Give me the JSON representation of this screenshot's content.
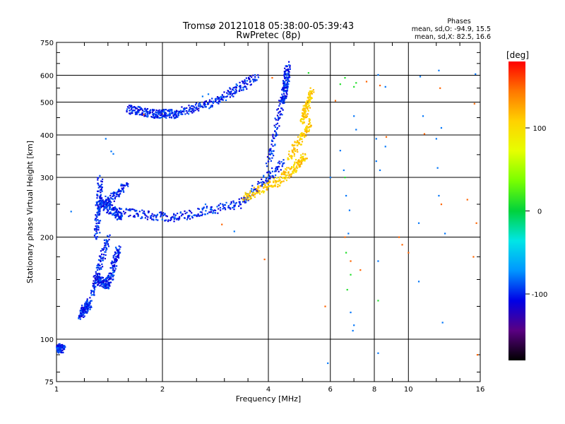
{
  "chart_data": {
    "type": "scatter",
    "title": "Tromsø 20121018 05:38:00-05:39:43",
    "subtitle": "RwPretec (8p)",
    "xlabel": "Frequency [MHz]",
    "ylabel": "Stationary phase Virtual Height [km]",
    "x_scale": "log",
    "y_scale": "log",
    "xlim": [
      1,
      16
    ],
    "ylim": [
      75,
      750
    ],
    "x_ticks": [
      1,
      2,
      4,
      6,
      8,
      10,
      16
    ],
    "y_ticks": [
      75,
      100,
      200,
      300,
      400,
      500,
      600,
      750
    ],
    "grid": true,
    "phases_box": {
      "title": "Phases",
      "line_o": "mean, sd,O:  -94.9, 15.5",
      "line_x": "mean, sd,X:  82.5, 16.6"
    },
    "colorbar": {
      "label": "[deg]",
      "range": [
        -180,
        180
      ],
      "ticks": [
        100,
        0,
        -100
      ],
      "colors": [
        "#000000",
        "#5a0082",
        "#0000e6",
        "#0096ff",
        "#00e6e6",
        "#00d23c",
        "#78ff00",
        "#e6ff00",
        "#ffd200",
        "#ff7800",
        "#ff0000"
      ]
    },
    "series": [
      {
        "phase_deg": -100,
        "segments": [
          {
            "x": [
              1.0,
              1.04
            ],
            "y": [
              94,
              94
            ]
          },
          {
            "x": [
              1.17,
              1.24
            ],
            "y": [
              118,
              128
            ]
          },
          {
            "x": [
              1.26,
              1.4
            ],
            "y": [
              135,
              200
            ]
          },
          {
            "x": [
              1.3,
              1.4
            ],
            "y": [
              150,
              145
            ]
          },
          {
            "x": [
              1.3,
              1.33
            ],
            "y": [
              200,
              295
            ]
          },
          {
            "x": [
              1.33,
              1.58
            ],
            "y": [
              245,
              285
            ]
          },
          {
            "x": [
              1.33,
              1.52
            ],
            "y": [
              255,
              230
            ]
          },
          {
            "x": [
              1.4,
              1.5
            ],
            "y": [
              145,
              185
            ]
          },
          {
            "x": [
              1.45,
              2.15
            ],
            "y": [
              238,
              228
            ]
          },
          {
            "x": [
              2.15,
              3.3
            ],
            "y": [
              228,
              250
            ]
          },
          {
            "x": [
              3.3,
              4.4
            ],
            "y": [
              250,
              330
            ]
          },
          {
            "x": [
              4.0,
              4.55
            ],
            "y": [
              330,
              610
            ]
          },
          {
            "x": [
              4.4,
              4.55
            ],
            "y": [
              500,
              640
            ]
          },
          {
            "x": [
              1.6,
              1.9
            ],
            "y": [
              478,
              462
            ]
          },
          {
            "x": [
              1.9,
              2.2
            ],
            "y": [
              462,
              462
            ]
          },
          {
            "x": [
              2.2,
              2.9
            ],
            "y": [
              465,
              505
            ]
          },
          {
            "x": [
              2.9,
              3.7
            ],
            "y": [
              510,
              590
            ]
          }
        ]
      },
      {
        "phase_deg": 110,
        "segments": [
          {
            "x": [
              3.4,
              4.4
            ],
            "y": [
              262,
              295
            ]
          },
          {
            "x": [
              4.4,
              5.1
            ],
            "y": [
              300,
              345
            ]
          },
          {
            "x": [
              4.6,
              5.3
            ],
            "y": [
              345,
              440
            ]
          },
          {
            "x": [
              5.0,
              5.3
            ],
            "y": [
              440,
              540
            ]
          }
        ]
      },
      {
        "phase_deg": -80,
        "points": [
          [
            1.1,
            238
          ],
          [
            1.38,
            390
          ],
          [
            1.43,
            358
          ],
          [
            1.45,
            352
          ],
          [
            2.6,
            520
          ],
          [
            2.7,
            528
          ],
          [
            6.0,
            300
          ],
          [
            6.4,
            360
          ],
          [
            6.55,
            315
          ],
          [
            6.65,
            265
          ],
          [
            6.8,
            240
          ],
          [
            6.75,
            205
          ],
          [
            7.0,
            110
          ],
          [
            6.85,
            120
          ],
          [
            6.95,
            106
          ],
          [
            5.9,
            85
          ],
          [
            8.2,
            91
          ],
          [
            8.2,
            170
          ],
          [
            8.1,
            390
          ],
          [
            8.1,
            335
          ],
          [
            8.3,
            315
          ],
          [
            8.6,
            370
          ],
          [
            8.2,
            602
          ],
          [
            8.6,
            555
          ],
          [
            10.8,
            595
          ],
          [
            10.7,
            220
          ],
          [
            10.7,
            148
          ],
          [
            12.0,
            390
          ],
          [
            12.1,
            320
          ],
          [
            12.2,
            265
          ],
          [
            12.4,
            420
          ],
          [
            12.7,
            205
          ],
          [
            15.5,
            605
          ],
          [
            7.0,
            455
          ],
          [
            7.1,
            415
          ],
          [
            11.0,
            455
          ],
          [
            12.2,
            620
          ],
          [
            12.5,
            112
          ],
          [
            3.2,
            208
          ],
          [
            2.65,
            250
          ],
          [
            2.75,
            243
          ]
        ]
      },
      {
        "phase_deg": 10,
        "points": [
          [
            6.4,
            565
          ],
          [
            6.6,
            590
          ],
          [
            7.0,
            555
          ],
          [
            7.1,
            570
          ],
          [
            5.2,
            610
          ],
          [
            6.6,
            300
          ],
          [
            6.65,
            180
          ],
          [
            6.7,
            140
          ],
          [
            6.85,
            155
          ],
          [
            8.2,
            130
          ]
        ]
      },
      {
        "phase_deg": 150,
        "points": [
          [
            1.77,
            460
          ],
          [
            3.9,
            172
          ],
          [
            5.8,
            125
          ],
          [
            6.6,
            200
          ],
          [
            6.85,
            170
          ],
          [
            7.3,
            160
          ],
          [
            8.3,
            560
          ],
          [
            8.65,
            395
          ],
          [
            9.4,
            200
          ],
          [
            9.6,
            190
          ],
          [
            10.0,
            180
          ],
          [
            11.1,
            403
          ],
          [
            12.3,
            550
          ],
          [
            12.4,
            250
          ],
          [
            14.7,
            258
          ],
          [
            15.6,
            220
          ],
          [
            15.4,
            495
          ],
          [
            15.3,
            175
          ],
          [
            15.7,
            90
          ],
          [
            7.6,
            575
          ],
          [
            6.2,
            505
          ],
          [
            4.1,
            590
          ],
          [
            2.95,
            218
          ]
        ]
      }
    ]
  }
}
